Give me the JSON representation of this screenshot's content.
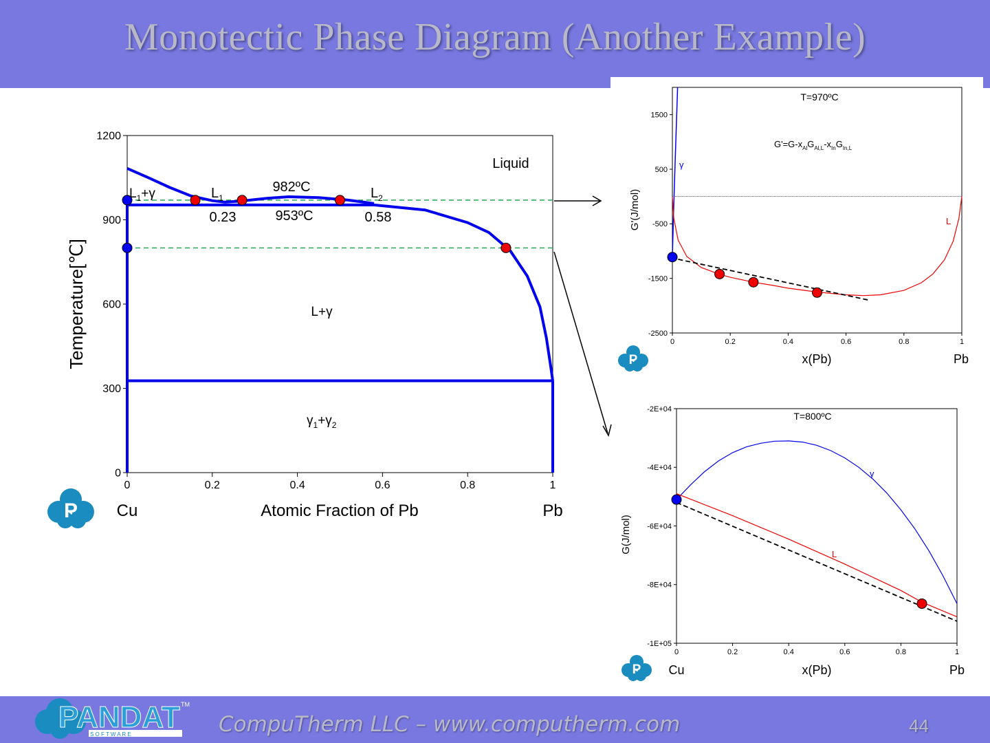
{
  "slide": {
    "title": "Monotectic Phase Diagram (Another Example)",
    "footer": "CompuTherm LLC – www.computherm.com",
    "page_number": "44",
    "logo_text": "PANDAT",
    "logo_tm": "TM",
    "logo_sub": "S O F T W A R E",
    "logo_p": "P",
    "colors": {
      "bar": "#7878e0",
      "phase_line": "#0000ee",
      "dashed": "#22aa55",
      "marker_red": "#ee0000",
      "marker_blue": "#0000ee"
    }
  },
  "chart_data": [
    {
      "id": "phase-diagram",
      "type": "line",
      "xlabel": "Atomic Fraction of Pb",
      "ylabel": "Temperature[℃]",
      "xlim": [
        0,
        1
      ],
      "ylim": [
        0,
        1200
      ],
      "x_ticks": [
        "0",
        "0.2",
        "0.4",
        "0.6",
        "0.8",
        "1"
      ],
      "y_ticks": [
        "0",
        "300",
        "600",
        "900",
        "1200"
      ],
      "left_element": "Cu",
      "right_element": "Pb",
      "series": [
        {
          "values": [
            [
              0,
              1083
            ],
            [
              0.05,
              1050
            ],
            [
              0.1,
              1015
            ],
            [
              0.15,
              985
            ],
            [
              0.2,
              968
            ],
            [
              0.23,
              963
            ],
            [
              0.27,
              967
            ],
            [
              0.33,
              977
            ],
            [
              0.38,
              982
            ],
            [
              0.45,
              979
            ],
            [
              0.52,
              970
            ],
            [
              0.58,
              958
            ]
          ]
        },
        {
          "values": [
            [
              0,
              953
            ],
            [
              0.58,
              953
            ],
            [
              0.7,
              935
            ],
            [
              0.8,
              890
            ],
            [
              0.85,
              855
            ],
            [
              0.9,
              790
            ],
            [
              0.94,
              700
            ],
            [
              0.97,
              590
            ],
            [
              0.985,
              480
            ],
            [
              0.995,
              380
            ],
            [
              1,
              327
            ]
          ]
        },
        {
          "values": [
            [
              0,
              327
            ],
            [
              1,
              327
            ]
          ]
        },
        {
          "values": [
            [
              0,
              0
            ],
            [
              0,
              953
            ]
          ]
        },
        {
          "values": [
            [
              1,
              0
            ],
            [
              1,
              327
            ]
          ]
        }
      ],
      "dashed_lines": [
        {
          "y": 970,
          "x_from": 0,
          "x_to": 1
        },
        {
          "y": 800,
          "x_from": 0,
          "x_to": 1
        }
      ],
      "markers": [
        {
          "x": 0,
          "y": 970,
          "color": "blue"
        },
        {
          "x": 0,
          "y": 800,
          "color": "blue"
        },
        {
          "x": 0.16,
          "y": 970,
          "color": "red"
        },
        {
          "x": 0.27,
          "y": 970,
          "color": "red"
        },
        {
          "x": 0.5,
          "y": 970,
          "color": "red"
        },
        {
          "x": 0.89,
          "y": 800,
          "color": "red"
        }
      ],
      "labels": {
        "liquid": "Liquid",
        "l_gamma_left_prefix": "L",
        "l_gamma_left_sub": "1",
        "l_gamma_left_suffix": "+γ",
        "l1": "L",
        "l1_sub": "1",
        "l2": "L",
        "l2_sub": "2",
        "t_monotectic": "982ºC",
        "t_lower": "953ºC",
        "c_l1": "0.23",
        "c_l2": "0.58",
        "l_plus_gamma": "L+γ",
        "gamma1": "γ",
        "gamma1_sub": "1",
        "plus": "+γ",
        "gamma2_sub": "2"
      }
    },
    {
      "id": "gibbs-970",
      "type": "line",
      "title": "T=970ºC",
      "xlabel": "x(Pb)",
      "ylabel": "G'(J/mol)",
      "right_element": "Pb",
      "xlim": [
        0,
        1
      ],
      "ylim": [
        -2500,
        2000
      ],
      "x_ticks": [
        "0",
        "0.2",
        "0.4",
        "0.6",
        "0.8",
        "1"
      ],
      "y_ticks": [
        "-2500",
        "-1500",
        "-500",
        "500",
        "1500"
      ],
      "equation": {
        "g": "G'=G-x",
        "s1": "Al",
        "g2": "G",
        "s2": "Al,L",
        "g3": "-x",
        "s3": "In",
        "g4": "G",
        "s4": "In,L"
      },
      "series": [
        {
          "name": "γ",
          "values": [
            [
              0,
              -1100
            ],
            [
              0.004,
              -300
            ],
            [
              0.01,
              700
            ],
            [
              0.018,
              2000
            ]
          ]
        },
        {
          "name": "L",
          "values": [
            [
              0,
              0
            ],
            [
              0.005,
              -400
            ],
            [
              0.02,
              -800
            ],
            [
              0.05,
              -1100
            ],
            [
              0.1,
              -1300
            ],
            [
              0.16,
              -1420
            ],
            [
              0.2,
              -1480
            ],
            [
              0.28,
              -1570
            ],
            [
              0.35,
              -1630
            ],
            [
              0.4,
              -1680
            ],
            [
              0.5,
              -1750
            ],
            [
              0.6,
              -1800
            ],
            [
              0.66,
              -1815
            ],
            [
              0.72,
              -1800
            ],
            [
              0.8,
              -1720
            ],
            [
              0.86,
              -1580
            ],
            [
              0.9,
              -1420
            ],
            [
              0.94,
              -1160
            ],
            [
              0.97,
              -820
            ],
            [
              0.99,
              -400
            ],
            [
              1,
              0
            ]
          ]
        }
      ],
      "zero_line": 0,
      "tangent": [
        [
          0.02,
          -1150
        ],
        [
          0.68,
          -1900
        ]
      ],
      "markers": [
        {
          "x": 0,
          "y": -1110,
          "color": "blue"
        },
        {
          "x": 0.163,
          "y": -1420,
          "color": "red"
        },
        {
          "x": 0.28,
          "y": -1570,
          "color": "red"
        },
        {
          "x": 0.5,
          "y": -1760,
          "color": "red"
        }
      ]
    },
    {
      "id": "gibbs-800",
      "type": "line",
      "title": "T=800ºC",
      "xlabel": "x(Pb)",
      "ylabel": "G(J/mol)",
      "left_element": "Cu",
      "right_element": "Pb",
      "xlim": [
        0,
        1
      ],
      "ylim": [
        -100000,
        -20000
      ],
      "x_ticks": [
        "0",
        "0.2",
        "0.4",
        "0.6",
        "0.8",
        "1"
      ],
      "y_ticks": [
        "-1E+05",
        "-8E+04",
        "-6E+04",
        "-4E+04",
        "-2E+04"
      ],
      "series": [
        {
          "name": "γ",
          "values": [
            [
              0,
              -51000
            ],
            [
              0.05,
              -46000
            ],
            [
              0.1,
              -41500
            ],
            [
              0.15,
              -37800
            ],
            [
              0.2,
              -35000
            ],
            [
              0.25,
              -33000
            ],
            [
              0.3,
              -31800
            ],
            [
              0.35,
              -31100
            ],
            [
              0.4,
              -31000
            ],
            [
              0.45,
              -31400
            ],
            [
              0.5,
              -32500
            ],
            [
              0.55,
              -34300
            ],
            [
              0.6,
              -36800
            ],
            [
              0.65,
              -40000
            ],
            [
              0.7,
              -44000
            ],
            [
              0.75,
              -48800
            ],
            [
              0.8,
              -54500
            ],
            [
              0.85,
              -61000
            ],
            [
              0.9,
              -68500
            ],
            [
              0.95,
              -77000
            ],
            [
              1,
              -86500
            ]
          ]
        },
        {
          "name": "L",
          "values": [
            [
              0,
              -49000
            ],
            [
              0.2,
              -56500
            ],
            [
              0.4,
              -64500
            ],
            [
              0.6,
              -73000
            ],
            [
              0.8,
              -82000
            ],
            [
              0.875,
              -86000
            ],
            [
              1,
              -91000
            ]
          ]
        }
      ],
      "tangent": [
        [
          0,
          -52000
        ],
        [
          1,
          -92500
        ]
      ],
      "markers": [
        {
          "x": 0,
          "y": -51000,
          "color": "blue"
        },
        {
          "x": 0.875,
          "y": -86500,
          "color": "red"
        }
      ]
    }
  ]
}
